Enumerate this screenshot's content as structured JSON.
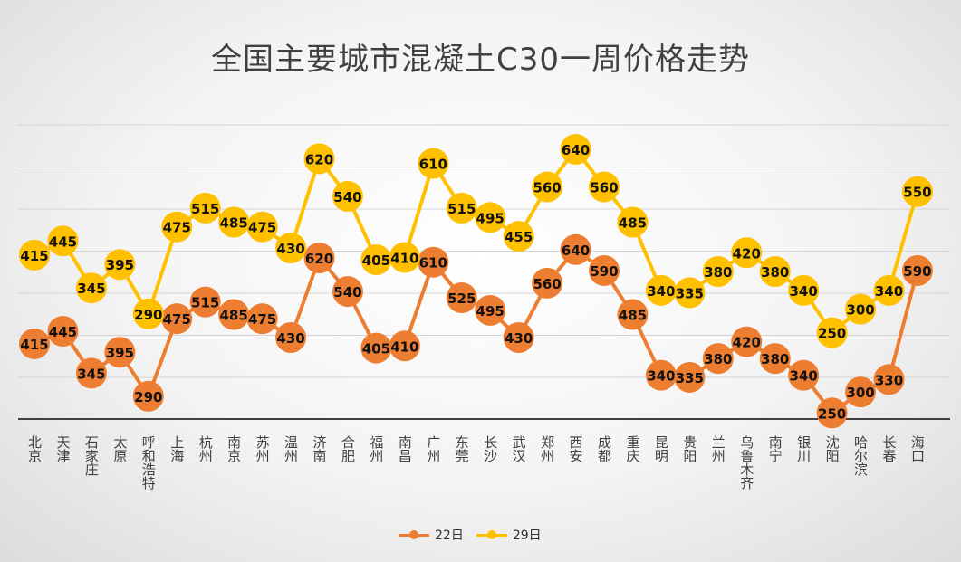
{
  "chart_data": {
    "type": "line",
    "title": "全国主要城市混凝土C30一周价格走势",
    "xlabel": "",
    "ylabel": "",
    "categories": [
      "北京",
      "天津",
      "石家庄",
      "太原",
      "呼和浩特",
      "上海",
      "杭州",
      "南京",
      "苏州",
      "温州",
      "济南",
      "合肥",
      "福州",
      "南昌",
      "广州",
      "东莞",
      "长沙",
      "武汉",
      "郑州",
      "西安",
      "成都",
      "重庆",
      "昆明",
      "贵阳",
      "兰州",
      "乌鲁木齐",
      "南宁",
      "银川",
      "沈阳",
      "哈尔滨",
      "长春",
      "海口"
    ],
    "series": [
      {
        "name": "22日",
        "color": "#ED7D31",
        "values": [
          415,
          445,
          345,
          395,
          290,
          475,
          515,
          485,
          475,
          430,
          620,
          540,
          405,
          410,
          610,
          525,
          495,
          430,
          560,
          640,
          590,
          485,
          340,
          335,
          380,
          420,
          380,
          340,
          250,
          300,
          330,
          590
        ]
      },
      {
        "name": "29日",
        "color": "#FFC000",
        "values": [
          415,
          445,
          345,
          395,
          290,
          475,
          515,
          485,
          475,
          430,
          620,
          540,
          405,
          410,
          610,
          515,
          495,
          455,
          560,
          640,
          560,
          485,
          340,
          335,
          380,
          420,
          380,
          340,
          250,
          300,
          340,
          550
        ]
      }
    ],
    "grid": true,
    "legend": "bottom",
    "data_labels": true
  }
}
